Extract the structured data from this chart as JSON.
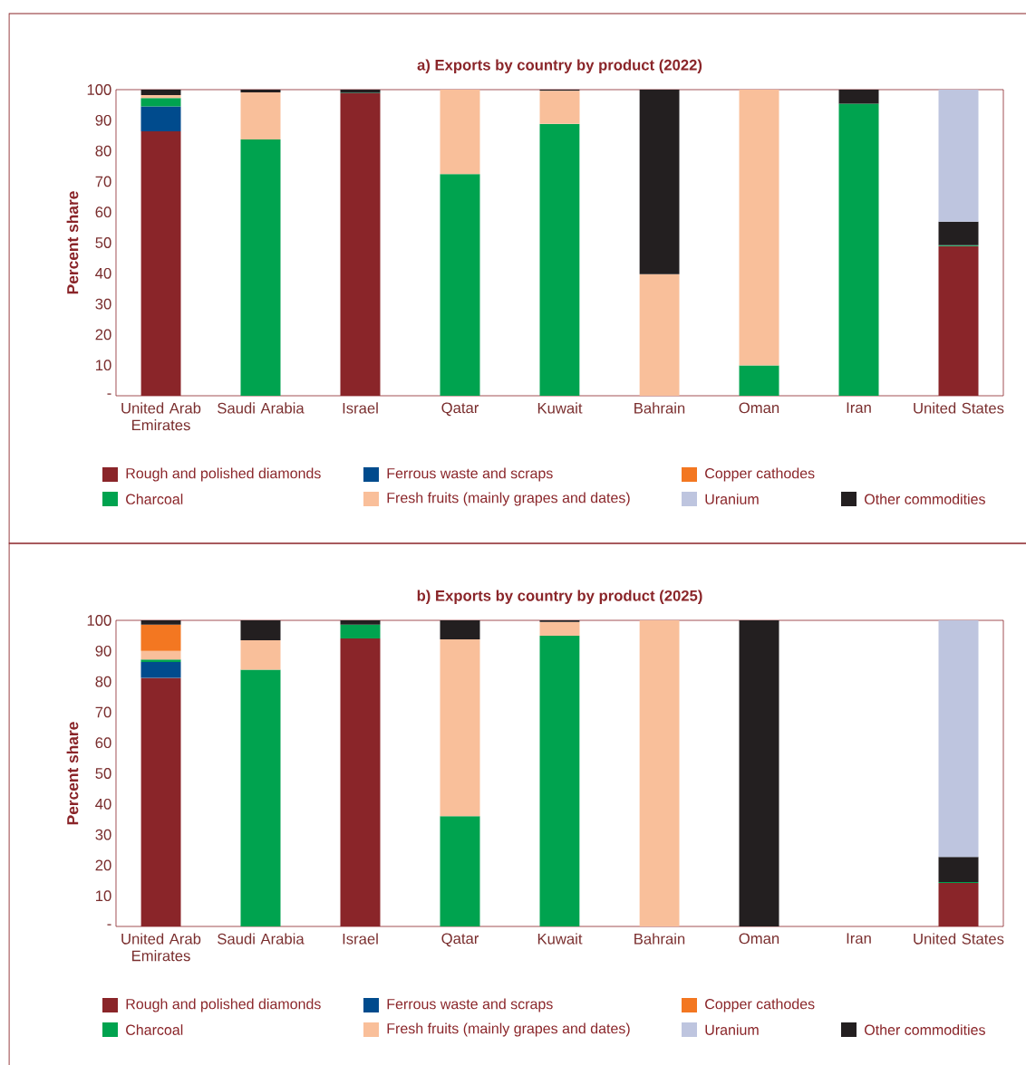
{
  "chart_data": [
    {
      "type": "bar",
      "stacked": true,
      "title": "a) Exports by country by product (2022)",
      "ylabel": "Percent share",
      "categories": [
        "United Arab Emirates",
        "Saudi Arabia",
        "Israel",
        "Qatar",
        "Kuwait",
        "Bahrain",
        "Oman",
        "Iran",
        "United States"
      ],
      "ylim": [
        0,
        100
      ],
      "yticks": [
        {
          "value": 0,
          "label": "-"
        },
        10,
        20,
        30,
        40,
        50,
        60,
        70,
        80,
        90,
        100
      ],
      "legend": "bottom",
      "series": [
        {
          "name": "Rough and polished diamonds",
          "color": "#8a2529",
          "values": [
            86.4,
            null,
            98.8,
            null,
            null,
            null,
            null,
            null,
            48.9
          ]
        },
        {
          "name": "Ferrous waste and scraps",
          "color": "#004b8d",
          "values": [
            8.1,
            null,
            null,
            null,
            null,
            null,
            null,
            null,
            null
          ]
        },
        {
          "name": "Charcoal",
          "color": "#00a34f",
          "values": [
            2.8,
            83.7,
            0.2,
            72.4,
            88.8,
            null,
            9.9,
            95.4,
            0.3
          ]
        },
        {
          "name": "Fresh fruits (mainly grapes and dates)",
          "color": "#f9bf9a",
          "values": [
            0.9,
            15.4,
            null,
            27.6,
            10.8,
            39.7,
            90.1,
            null,
            null
          ]
        },
        {
          "name": "Copper cathodes",
          "color": "#f37721",
          "values": [
            null,
            null,
            null,
            null,
            null,
            null,
            null,
            null,
            null
          ]
        },
        {
          "name": "Other commodities",
          "color": "#231f20",
          "values": [
            1.8,
            0.9,
            1.0,
            null,
            0.4,
            60.3,
            null,
            4.6,
            7.7
          ]
        },
        {
          "name": "Uranium",
          "color": "#bec5df",
          "values": [
            null,
            null,
            null,
            null,
            null,
            null,
            null,
            null,
            43.1
          ]
        }
      ]
    },
    {
      "type": "bar",
      "stacked": true,
      "title": "b) Exports by country by product (2025)",
      "ylabel": "Percent share",
      "categories": [
        "United Arab Emirates",
        "Saudi Arabia",
        "Israel",
        "Qatar",
        "Kuwait",
        "Bahrain",
        "Oman",
        "Iran",
        "United States"
      ],
      "ylim": [
        0,
        100
      ],
      "yticks": [
        {
          "value": 0,
          "label": "-"
        },
        10,
        20,
        30,
        40,
        50,
        60,
        70,
        80,
        90,
        100
      ],
      "legend": "bottom",
      "series": [
        {
          "name": "Rough and polished diamonds",
          "color": "#8a2529",
          "values": [
            81.2,
            null,
            94.1,
            null,
            null,
            null,
            null,
            null,
            14.2
          ]
        },
        {
          "name": "Ferrous waste and scraps",
          "color": "#004b8d",
          "values": [
            5.2,
            null,
            null,
            null,
            null,
            null,
            null,
            null,
            null
          ]
        },
        {
          "name": "Charcoal",
          "color": "#00a34f",
          "values": [
            0.8,
            83.9,
            4.5,
            36.0,
            95.0,
            null,
            null,
            null,
            0.3
          ]
        },
        {
          "name": "Fresh fruits (mainly grapes and dates)",
          "color": "#f9bf9a",
          "values": [
            2.8,
            9.6,
            null,
            57.8,
            4.5,
            100,
            null,
            null,
            null
          ]
        },
        {
          "name": "Copper cathodes",
          "color": "#f37721",
          "values": [
            8.6,
            null,
            null,
            null,
            null,
            null,
            null,
            null,
            null
          ]
        },
        {
          "name": "Other commodities",
          "color": "#231f20",
          "values": [
            1.4,
            6.5,
            1.4,
            6.2,
            0.5,
            null,
            100,
            null,
            8.2
          ]
        },
        {
          "name": "Uranium",
          "color": "#bec5df",
          "values": [
            null,
            null,
            null,
            null,
            null,
            null,
            null,
            null,
            77.3
          ]
        }
      ]
    }
  ]
}
